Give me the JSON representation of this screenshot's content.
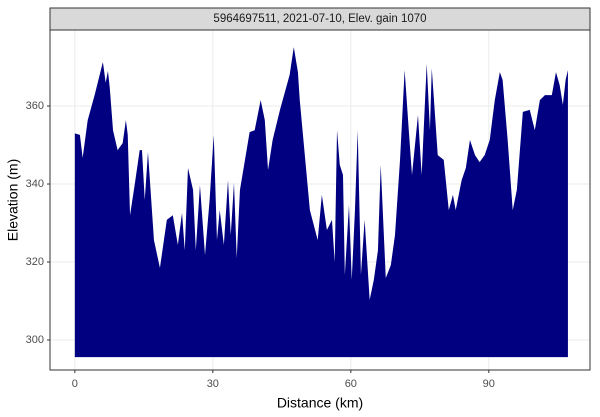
{
  "chart_data": {
    "type": "area",
    "title": "5964697511, 2021-07-10, Elev. gain 1070",
    "xlabel": "Distance (km)",
    "ylabel": "Elevation (m)",
    "color": "#000080",
    "grid": true,
    "baseline": 295.6,
    "xlim": [
      -5.4,
      112
    ],
    "ylim": [
      292.3,
      379.5
    ],
    "xticks": [
      0,
      30,
      60,
      90
    ],
    "yticks": [
      300,
      320,
      340,
      360
    ],
    "x": [
      0,
      1.1,
      1.7,
      2.8,
      4.3,
      6.1,
      6.7,
      7.2,
      7.6,
      8.3,
      9.3,
      10.4,
      11.1,
      11.5,
      12,
      13,
      14.1,
      14.6,
      15.2,
      15.9,
      17.2,
      18.5,
      20,
      21.3,
      22.4,
      23.3,
      23.9,
      24.6,
      25.7,
      26.3,
      27.2,
      28.3,
      29.3,
      30.2,
      30.9,
      31.5,
      32.4,
      33.3,
      33.9,
      34.6,
      35.2,
      35.9,
      38,
      39.1,
      40.4,
      41.3,
      42,
      43,
      44.6,
      46.7,
      47.6,
      48.5,
      48.9,
      50,
      51.1,
      52.8,
      53.7,
      54.8,
      55.9,
      56.5,
      57,
      57.6,
      58.3,
      58.7,
      59.6,
      60.2,
      60.9,
      61.5,
      62.2,
      63,
      64.1,
      65,
      65.9,
      66.5,
      67.6,
      68.7,
      69.6,
      70.7,
      71.7,
      72.6,
      73.3,
      74.6,
      75.4,
      76.5,
      77.2,
      77.6,
      78.9,
      80.2,
      81.3,
      82.2,
      82.8,
      84.1,
      85,
      85.9,
      87,
      88,
      89.1,
      90.2,
      91.3,
      92.4,
      93,
      94.1,
      95.2,
      96.1,
      97.4,
      98.9,
      100,
      101.1,
      102.2,
      103.7,
      104.6,
      105.4,
      106.1,
      106.7,
      107.2
    ],
    "values": [
      353,
      352.6,
      346.7,
      356.4,
      362.8,
      371.3,
      366,
      369,
      364.6,
      353.8,
      348.7,
      350.5,
      356.4,
      352.6,
      332,
      339.7,
      348.7,
      348.7,
      335.9,
      348.2,
      325.6,
      318.5,
      330.8,
      332,
      324.4,
      332.6,
      323,
      344.1,
      338.5,
      323,
      339.7,
      321.8,
      335.9,
      352.6,
      325.6,
      333.3,
      324.4,
      341,
      326.9,
      340.3,
      321,
      338.5,
      353.3,
      353.8,
      361.5,
      356.4,
      343.6,
      351.3,
      359,
      368,
      375.1,
      368.7,
      361.5,
      347.4,
      333.3,
      325.6,
      337.2,
      328.2,
      330.8,
      320,
      353.8,
      344.9,
      342.3,
      316.7,
      334.6,
      315.4,
      333.3,
      353.8,
      316.7,
      330.8,
      310.3,
      315.4,
      323,
      344.9,
      315.9,
      319.2,
      326.9,
      346.2,
      369.2,
      353.8,
      342.3,
      357.7,
      342.3,
      370.8,
      353.8,
      369.7,
      347.4,
      346.2,
      333.3,
      337.2,
      333.3,
      341,
      344.1,
      351.3,
      347.4,
      345.6,
      347.4,
      351.3,
      361.5,
      368.7,
      366.7,
      351.3,
      333.3,
      338.5,
      358.5,
      359,
      353.8,
      361.5,
      362.8,
      362.8,
      368.7,
      365.4,
      360.3,
      366.7,
      369.2
    ]
  }
}
